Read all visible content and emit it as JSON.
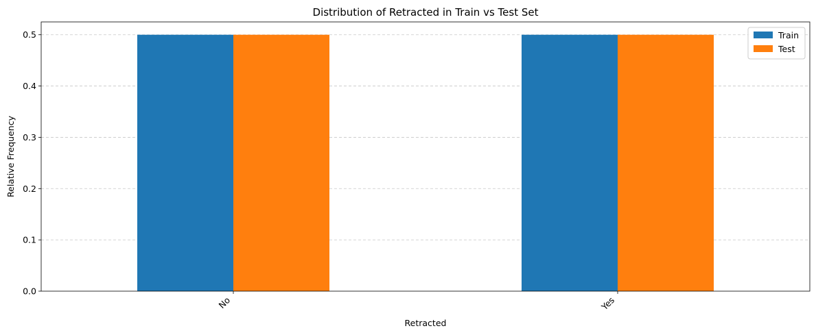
{
  "chart_data": {
    "type": "bar",
    "title": "Distribution of Retracted in Train vs Test Set",
    "xlabel": "Retracted",
    "ylabel": "Relative Frequency",
    "categories": [
      "No",
      "Yes"
    ],
    "series": [
      {
        "name": "Train",
        "values": [
          0.5,
          0.5
        ],
        "color": "#1f77b4"
      },
      {
        "name": "Test",
        "values": [
          0.5,
          0.5
        ],
        "color": "#ff7f0e"
      }
    ],
    "ylim": [
      0,
      0.525
    ],
    "yticks": [
      0.0,
      0.1,
      0.2,
      0.3,
      0.4,
      0.5
    ],
    "ytick_labels": [
      "0.0",
      "0.1",
      "0.2",
      "0.3",
      "0.4",
      "0.5"
    ],
    "grid": "y-dashed",
    "legend_position": "top-right"
  }
}
